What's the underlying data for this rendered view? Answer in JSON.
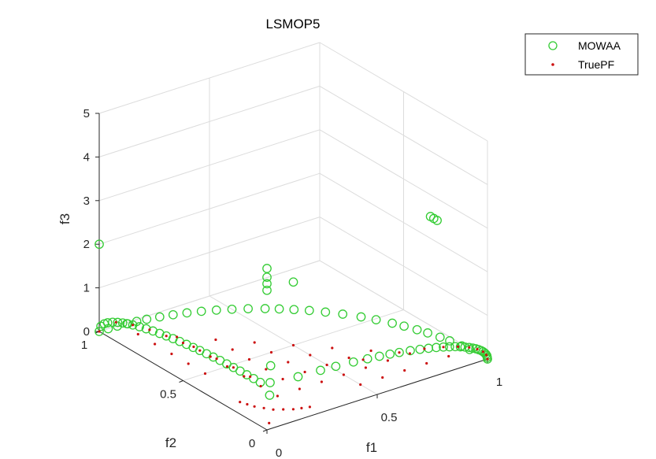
{
  "chart_data": {
    "type": "scatter",
    "projection": "3d",
    "title": "LSMOP5",
    "xlabel": "f1",
    "ylabel": "f2",
    "zlabel": "f3",
    "xlim": [
      0,
      1
    ],
    "ylim": [
      0,
      1
    ],
    "zlim": [
      0,
      5
    ],
    "xticks": [
      "0",
      "0.5",
      "1"
    ],
    "yticks": [
      "0",
      "0.5",
      "1"
    ],
    "zticks": [
      "0",
      "1",
      "2",
      "3",
      "4",
      "5"
    ],
    "grid": true,
    "legend": "top-right",
    "series": [
      {
        "name": "MOWAA",
        "marker": "circle-open",
        "color": "#33cc33",
        "points": [
          [
            1.0,
            0.0,
            0.0
          ],
          [
            0.995,
            0.1,
            0.0
          ],
          [
            0.99,
            0.14,
            0.0
          ],
          [
            0.98,
            0.199,
            0.0
          ],
          [
            0.97,
            0.243,
            0.0
          ],
          [
            0.955,
            0.297,
            0.0
          ],
          [
            0.94,
            0.341,
            0.0
          ],
          [
            0.92,
            0.392,
            0.0
          ],
          [
            0.9,
            0.436,
            0.0
          ],
          [
            0.87,
            0.493,
            0.0
          ],
          [
            0.84,
            0.543,
            0.0
          ],
          [
            0.8,
            0.6,
            0.0
          ],
          [
            0.76,
            0.65,
            0.0
          ],
          [
            0.72,
            0.694,
            0.0
          ],
          [
            0.68,
            0.733,
            0.0
          ],
          [
            0.64,
            0.768,
            0.0
          ],
          [
            0.6,
            0.8,
            0.0
          ],
          [
            0.55,
            0.835,
            0.0
          ],
          [
            0.5,
            0.866,
            0.0
          ],
          [
            0.45,
            0.893,
            0.0
          ],
          [
            0.4,
            0.917,
            0.0
          ],
          [
            0.35,
            0.937,
            0.0
          ],
          [
            0.3,
            0.954,
            0.0
          ],
          [
            0.25,
            0.968,
            0.0
          ],
          [
            0.2,
            0.98,
            0.0
          ],
          [
            0.16,
            0.987,
            0.0
          ],
          [
            0.12,
            0.993,
            0.0
          ],
          [
            0.08,
            0.997,
            0.0
          ],
          [
            0.04,
            0.999,
            0.0
          ],
          [
            0.0,
            1.0,
            0.0
          ],
          [
            0.0,
            0.99,
            0.141
          ],
          [
            0.0,
            0.97,
            0.243
          ],
          [
            0.0,
            0.95,
            0.312
          ],
          [
            0.0,
            0.92,
            0.392
          ],
          [
            0.0,
            0.89,
            0.456
          ],
          [
            0.0,
            0.86,
            0.51
          ],
          [
            0.0,
            0.83,
            0.558
          ],
          [
            0.0,
            0.8,
            0.6
          ],
          [
            0.0,
            0.76,
            0.65
          ],
          [
            0.0,
            0.72,
            0.694
          ],
          [
            0.0,
            0.68,
            0.733
          ],
          [
            0.0,
            0.64,
            0.768
          ],
          [
            0.0,
            0.6,
            0.8
          ],
          [
            0.0,
            0.56,
            0.828
          ],
          [
            0.0,
            0.52,
            0.854
          ],
          [
            0.0,
            0.48,
            0.877
          ],
          [
            0.0,
            0.44,
            0.898
          ],
          [
            0.0,
            0.4,
            0.917
          ],
          [
            0.0,
            0.36,
            0.933
          ],
          [
            0.0,
            0.32,
            0.947
          ],
          [
            0.0,
            0.28,
            0.96
          ],
          [
            0.0,
            0.24,
            0.971
          ],
          [
            0.0,
            0.2,
            0.98
          ],
          [
            0.0,
            0.16,
            0.987
          ],
          [
            0.0,
            0.12,
            0.993
          ],
          [
            0.0,
            0.08,
            0.997
          ],
          [
            0.0,
            0.04,
            0.999
          ],
          [
            0.141,
            0.0,
            0.99
          ],
          [
            0.243,
            0.0,
            0.97
          ],
          [
            0.312,
            0.0,
            0.95
          ],
          [
            0.392,
            0.0,
            0.92
          ],
          [
            0.456,
            0.0,
            0.89
          ],
          [
            0.51,
            0.0,
            0.86
          ],
          [
            0.558,
            0.0,
            0.83
          ],
          [
            0.6,
            0.0,
            0.8
          ],
          [
            0.65,
            0.0,
            0.76
          ],
          [
            0.694,
            0.0,
            0.72
          ],
          [
            0.733,
            0.0,
            0.68
          ],
          [
            0.768,
            0.0,
            0.64
          ],
          [
            0.8,
            0.0,
            0.6
          ],
          [
            0.828,
            0.0,
            0.56
          ],
          [
            0.854,
            0.0,
            0.52
          ],
          [
            0.877,
            0.0,
            0.48
          ],
          [
            0.898,
            0.0,
            0.44
          ],
          [
            0.917,
            0.0,
            0.4
          ],
          [
            0.933,
            0.0,
            0.36
          ],
          [
            0.947,
            0.0,
            0.32
          ],
          [
            0.96,
            0.0,
            0.28
          ],
          [
            0.971,
            0.0,
            0.24
          ],
          [
            0.98,
            0.0,
            0.2
          ],
          [
            0.987,
            0.0,
            0.16
          ],
          [
            0.993,
            0.0,
            0.12
          ],
          [
            0.997,
            0.0,
            0.08
          ],
          [
            0.999,
            0.0,
            0.04
          ],
          [
            0.05,
            0.05,
            0.6
          ],
          [
            0.06,
            0.06,
            0.85
          ],
          [
            0.07,
            0.07,
            1.2
          ],
          [
            0.0,
            0.0,
            3.2
          ],
          [
            0.0,
            0.0,
            3.35
          ],
          [
            0.0,
            0.0,
            3.5
          ],
          [
            0.0,
            0.0,
            3.7
          ],
          [
            1.0,
            0.3,
            2.5
          ],
          [
            1.0,
            0.32,
            2.5
          ],
          [
            1.0,
            0.34,
            2.5
          ],
          [
            0.0,
            1.0,
            2.0
          ],
          [
            0.5,
            0.5,
            1.45
          ]
        ]
      },
      {
        "name": "TruePF",
        "marker": "dot",
        "color": "#cc1111",
        "points": [
          [
            1.0,
            0.0,
            0.0
          ],
          [
            0.9,
            0.1,
            0.0
          ],
          [
            0.8,
            0.2,
            0.0
          ],
          [
            0.7,
            0.3,
            0.0
          ],
          [
            0.6,
            0.4,
            0.0
          ],
          [
            0.5,
            0.5,
            0.0
          ],
          [
            0.4,
            0.6,
            0.0
          ],
          [
            0.3,
            0.7,
            0.0
          ],
          [
            0.2,
            0.8,
            0.0
          ],
          [
            0.1,
            0.9,
            0.0
          ],
          [
            0.0,
            1.0,
            0.0
          ],
          [
            0.0,
            0.9,
            0.436
          ],
          [
            0.0,
            0.8,
            0.6
          ],
          [
            0.0,
            0.7,
            0.714
          ],
          [
            0.0,
            0.6,
            0.8
          ],
          [
            0.0,
            0.5,
            0.866
          ],
          [
            0.0,
            0.4,
            0.917
          ],
          [
            0.0,
            0.3,
            0.954
          ],
          [
            0.0,
            0.2,
            0.98
          ],
          [
            0.0,
            0.1,
            0.995
          ],
          [
            0.436,
            0.0,
            0.9
          ],
          [
            0.6,
            0.0,
            0.8
          ],
          [
            0.714,
            0.0,
            0.7
          ],
          [
            0.8,
            0.0,
            0.6
          ],
          [
            0.866,
            0.0,
            0.5
          ],
          [
            0.917,
            0.0,
            0.4
          ],
          [
            0.954,
            0.0,
            0.3
          ],
          [
            0.98,
            0.0,
            0.2
          ],
          [
            0.995,
            0.0,
            0.1
          ],
          [
            0.7,
            0.2,
            0.0
          ],
          [
            0.6,
            0.3,
            0.0
          ],
          [
            0.5,
            0.4,
            0.0
          ],
          [
            0.4,
            0.5,
            0.0
          ],
          [
            0.3,
            0.6,
            0.0
          ],
          [
            0.2,
            0.7,
            0.0
          ],
          [
            0.6,
            0.2,
            0.0
          ],
          [
            0.5,
            0.3,
            0.0
          ],
          [
            0.4,
            0.4,
            0.0
          ],
          [
            0.3,
            0.5,
            0.0
          ],
          [
            0.2,
            0.6,
            0.0
          ],
          [
            0.5,
            0.2,
            0.0
          ],
          [
            0.4,
            0.3,
            0.0
          ],
          [
            0.3,
            0.4,
            0.0
          ],
          [
            0.2,
            0.5,
            0.0
          ],
          [
            0.4,
            0.2,
            0.0
          ],
          [
            0.3,
            0.3,
            0.0
          ],
          [
            0.2,
            0.4,
            0.0
          ],
          [
            0.3,
            0.2,
            0.0
          ],
          [
            0.2,
            0.3,
            0.0
          ],
          [
            0.2,
            0.2,
            0.0
          ],
          [
            0.8,
            0.1,
            0.0
          ],
          [
            0.7,
            0.1,
            0.0
          ],
          [
            0.6,
            0.1,
            0.0
          ],
          [
            0.5,
            0.1,
            0.0
          ],
          [
            0.1,
            0.8,
            0.0
          ],
          [
            0.1,
            0.7,
            0.0
          ],
          [
            0.1,
            0.6,
            0.0
          ],
          [
            0.1,
            0.5,
            0.0
          ],
          [
            0.12,
            0.12,
            0.0
          ],
          [
            0.15,
            0.1,
            0.0
          ],
          [
            0.1,
            0.15,
            0.0
          ],
          [
            0.18,
            0.08,
            0.0
          ],
          [
            0.08,
            0.18,
            0.0
          ],
          [
            0.21,
            0.07,
            0.0
          ],
          [
            0.07,
            0.21,
            0.0
          ],
          [
            0.24,
            0.06,
            0.0
          ],
          [
            0.06,
            0.24,
            0.0
          ],
          [
            0.04,
            0.04,
            0.0
          ]
        ]
      }
    ]
  }
}
